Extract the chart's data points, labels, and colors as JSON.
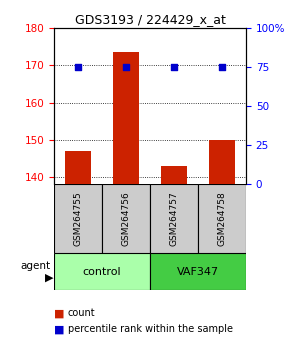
{
  "title": "GDS3193 / 224429_x_at",
  "samples": [
    "GSM264755",
    "GSM264756",
    "GSM264757",
    "GSM264758"
  ],
  "groups": [
    "control",
    "control",
    "VAF347",
    "VAF347"
  ],
  "count_values": [
    147.0,
    173.5,
    143.0,
    150.0
  ],
  "percentile_values": [
    75,
    75,
    75,
    75
  ],
  "ylim_left": [
    138,
    180
  ],
  "ylim_right": [
    0,
    100
  ],
  "yticks_left": [
    140,
    150,
    160,
    170,
    180
  ],
  "yticks_right": [
    0,
    25,
    50,
    75,
    100
  ],
  "yticklabels_right": [
    "0",
    "25",
    "50",
    "75",
    "100%"
  ],
  "bar_color": "#cc2200",
  "dot_color": "#0000cc",
  "group_colors": {
    "control": "#aaffaa",
    "VAF347": "#44cc44"
  },
  "legend_count_color": "#cc2200",
  "legend_dot_color": "#0000cc"
}
